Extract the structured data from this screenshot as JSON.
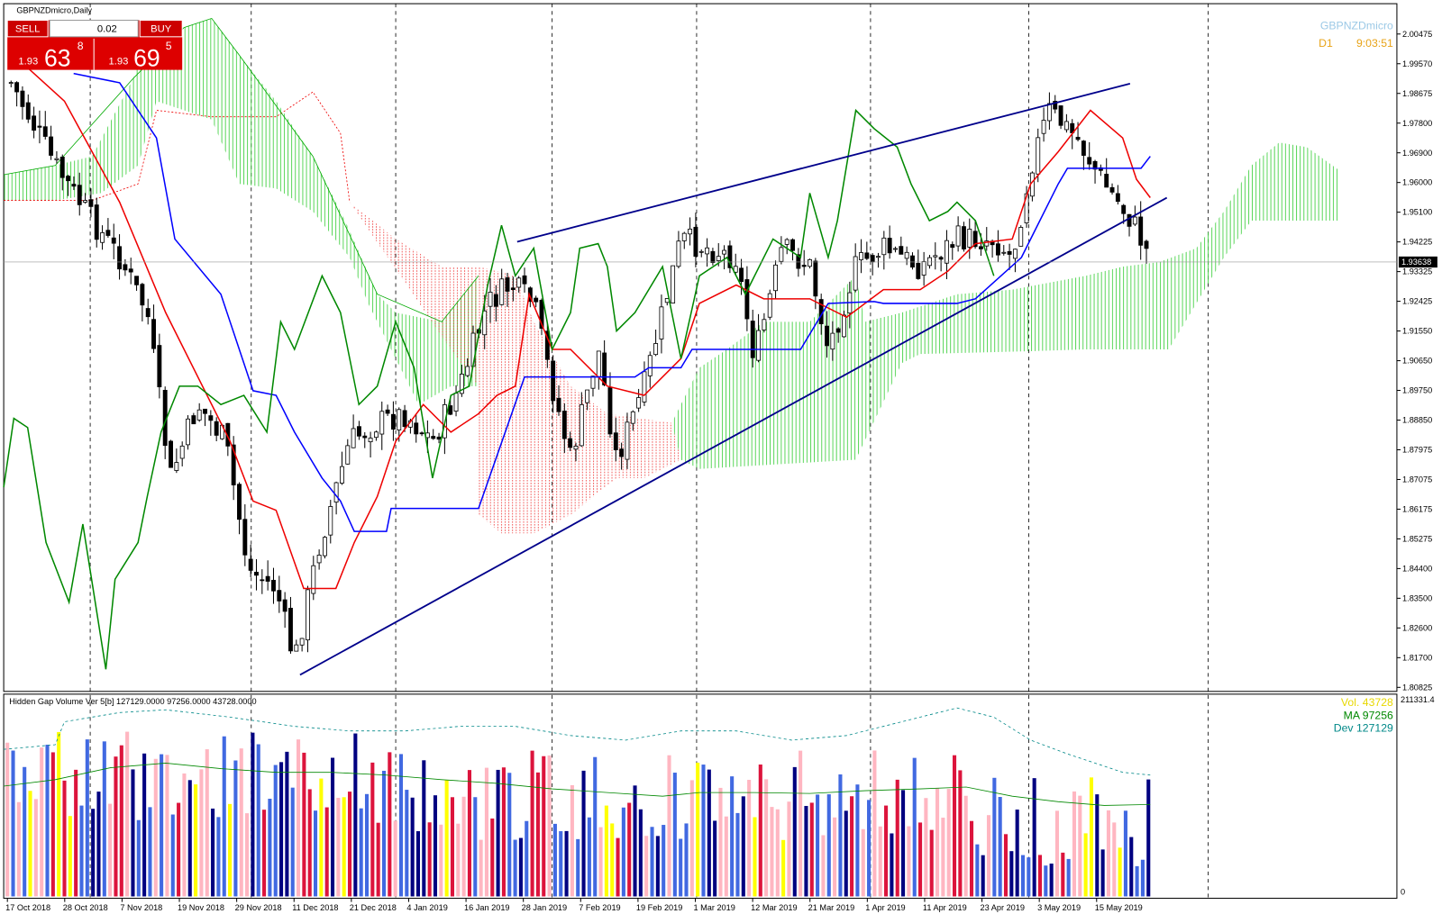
{
  "header": {
    "symbol": "GBPNZDmicro,Daily",
    "watermark_symbol": "GBPNZDmicro",
    "timeframe": "D1",
    "timer": "9:03:51"
  },
  "trade_panel": {
    "sell": "SELL",
    "buy": "BUY",
    "lot": "0.02",
    "sell_big": "1.93",
    "sell_pips": "63",
    "sell_frac": "8",
    "buy_big": "1.93",
    "buy_pips": "69",
    "buy_frac": "5"
  },
  "price_axis": {
    "labels": [
      "2.00475",
      "1.99570",
      "1.98675",
      "1.97800",
      "1.96900",
      "1.96000",
      "1.95100",
      "1.94225",
      "1.93325",
      "1.92425",
      "1.91550",
      "1.90650",
      "1.89750",
      "1.88850",
      "1.87975",
      "1.87075",
      "1.86175",
      "1.85275",
      "1.84400",
      "1.83500",
      "1.82600",
      "1.81700",
      "1.80825"
    ],
    "current": "1.93638"
  },
  "time_axis": {
    "labels": [
      "17 Oct 2018",
      "28 Oct 2018",
      "7 Nov 2018",
      "19 Nov 2018",
      "29 Nov 2018",
      "11 Dec 2018",
      "21 Dec 2018",
      "4 Jan 2019",
      "16 Jan 2019",
      "28 Jan 2019",
      "7 Feb 2019",
      "19 Feb 2019",
      "1 Mar 2019",
      "12 Mar 2019",
      "21 Mar 2019",
      "1 Apr 2019",
      "11 Apr 2019",
      "23 Apr 2019",
      "3 May 2019",
      "15 May 2019"
    ]
  },
  "indicator": {
    "title": "Hidden Gap Volume Ver 5[b] 127129.0000 97256.0000 43728.0000",
    "vol": "Vol. 43728",
    "ma": "MA  97256",
    "dev": "Dev  127129",
    "axis_max": "211331.4",
    "axis_min": "0"
  }
}
